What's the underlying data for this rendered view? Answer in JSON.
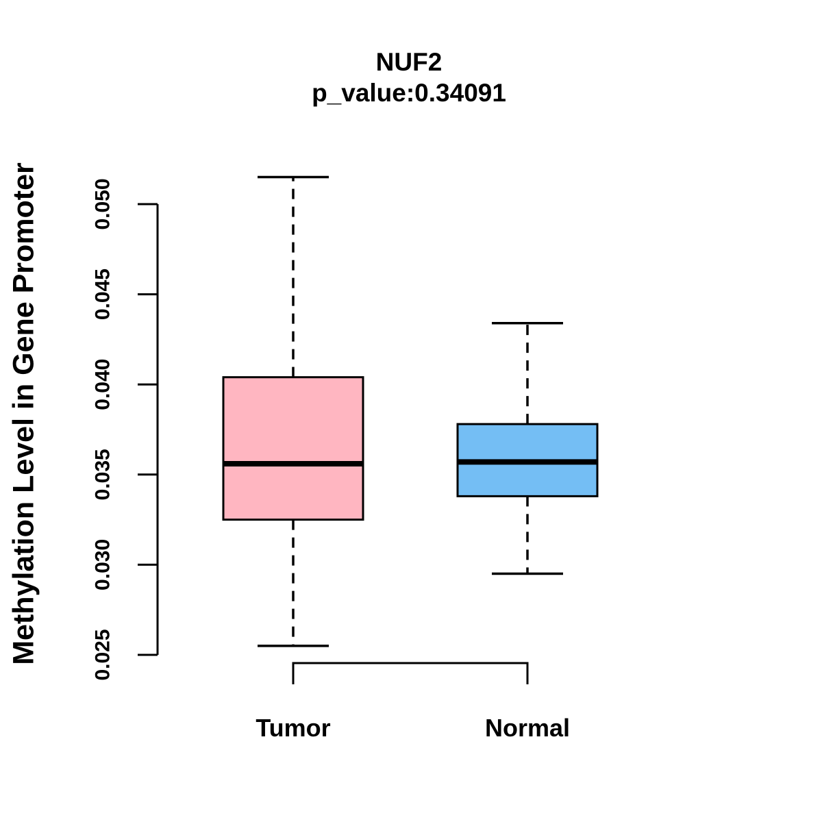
{
  "figure": {
    "background": "#FFFFFF",
    "text_color": "#000000"
  },
  "chart_data": {
    "type": "boxplot",
    "title": "NUF2",
    "subtitle": "p_value:0.34091",
    "ylabel": "Methylation Level in Gene Promoter",
    "xlabel": "",
    "categories": [
      "Tumor",
      "Normal"
    ],
    "y_ticks": [
      "0.025",
      "0.030",
      "0.035",
      "0.040",
      "0.045",
      "0.050"
    ],
    "ylim": [
      0.025,
      0.05
    ],
    "grid": false,
    "legend": "none",
    "series": [
      {
        "name": "Tumor",
        "fill_color": "#FFB6C1",
        "border_color": "#000000",
        "lower_whisker": 0.0255,
        "q1": 0.0325,
        "median": 0.0356,
        "q3": 0.0404,
        "upper_whisker": 0.0515
      },
      {
        "name": "Normal",
        "fill_color": "#74BEF4",
        "border_color": "#000000",
        "lower_whisker": 0.0295,
        "q1": 0.0338,
        "median": 0.0357,
        "q3": 0.0378,
        "upper_whisker": 0.0434
      }
    ]
  }
}
